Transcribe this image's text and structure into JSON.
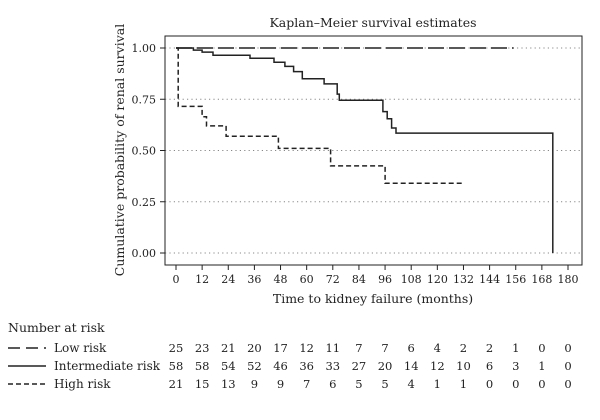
{
  "chart_data": {
    "type": "line",
    "title": "Kaplan–Meier survival estimates",
    "xlabel": "Time to kidney failure (months)",
    "ylabel": "Cumulative probability of renal survival",
    "xlim": [
      0,
      180
    ],
    "ylim": [
      0,
      1
    ],
    "x_ticks": [
      0,
      12,
      24,
      36,
      48,
      60,
      72,
      84,
      96,
      108,
      120,
      132,
      144,
      156,
      168,
      180
    ],
    "x_tick_labels": [
      "0",
      "12",
      "24",
      "36",
      "48",
      "60",
      "72",
      "84",
      "96",
      "108",
      "120",
      "132",
      "144",
      "156",
      "168",
      "180"
    ],
    "y_ticks": [
      0,
      0.25,
      0.5,
      0.75,
      1
    ],
    "y_tick_labels": [
      "0.00",
      "0.25",
      "0.50",
      "0.75",
      "1.00"
    ],
    "grid": "horizontal dotted",
    "series": [
      {
        "name": "Low risk",
        "dash": "long-dash",
        "color": "#222222",
        "points": [
          [
            0,
            1.0
          ],
          [
            155,
            1.0
          ]
        ]
      },
      {
        "name": "Intermediate risk",
        "dash": "solid",
        "color": "#222222",
        "points": [
          [
            0,
            1.0
          ],
          [
            8,
            1.0
          ],
          [
            8,
            0.99
          ],
          [
            12,
            0.99
          ],
          [
            12,
            0.98
          ],
          [
            17,
            0.98
          ],
          [
            17,
            0.965
          ],
          [
            34,
            0.965
          ],
          [
            34,
            0.95
          ],
          [
            45,
            0.95
          ],
          [
            45,
            0.93
          ],
          [
            50,
            0.93
          ],
          [
            50,
            0.91
          ],
          [
            54,
            0.91
          ],
          [
            54,
            0.885
          ],
          [
            58,
            0.885
          ],
          [
            58,
            0.85
          ],
          [
            68,
            0.85
          ],
          [
            68,
            0.825
          ],
          [
            74,
            0.825
          ],
          [
            74,
            0.775
          ],
          [
            75,
            0.775
          ],
          [
            75,
            0.745
          ],
          [
            95,
            0.745
          ],
          [
            95,
            0.69
          ],
          [
            97,
            0.69
          ],
          [
            97,
            0.655
          ],
          [
            99,
            0.655
          ],
          [
            99,
            0.61
          ],
          [
            101,
            0.61
          ],
          [
            101,
            0.585
          ],
          [
            173,
            0.585
          ],
          [
            173,
            0.0
          ]
        ]
      },
      {
        "name": "High risk",
        "dash": "short-dash",
        "color": "#222222",
        "points": [
          [
            0,
            1.0
          ],
          [
            1,
            1.0
          ],
          [
            1,
            0.715
          ],
          [
            12,
            0.715
          ],
          [
            12,
            0.665
          ],
          [
            14,
            0.665
          ],
          [
            14,
            0.62
          ],
          [
            23,
            0.62
          ],
          [
            23,
            0.57
          ],
          [
            47,
            0.57
          ],
          [
            47,
            0.51
          ],
          [
            71,
            0.51
          ],
          [
            71,
            0.425
          ],
          [
            96,
            0.425
          ],
          [
            96,
            0.34
          ],
          [
            132,
            0.34
          ]
        ]
      }
    ],
    "risk_table": {
      "title": "Number at risk",
      "times": [
        0,
        12,
        24,
        36,
        48,
        60,
        72,
        84,
        96,
        108,
        120,
        132,
        144,
        156,
        168,
        180
      ],
      "rows": [
        {
          "name": "Low risk",
          "dash": "long-dash",
          "values": [
            25,
            23,
            21,
            20,
            17,
            12,
            11,
            7,
            7,
            6,
            4,
            2,
            2,
            1,
            0,
            0
          ]
        },
        {
          "name": "Intermediate risk",
          "dash": "solid",
          "values": [
            58,
            58,
            54,
            52,
            46,
            36,
            33,
            27,
            20,
            14,
            12,
            10,
            6,
            3,
            1,
            0
          ]
        },
        {
          "name": "High risk",
          "dash": "short-dash",
          "values": [
            21,
            15,
            13,
            9,
            9,
            7,
            6,
            5,
            5,
            4,
            1,
            1,
            0,
            0,
            0,
            0
          ]
        }
      ]
    }
  }
}
